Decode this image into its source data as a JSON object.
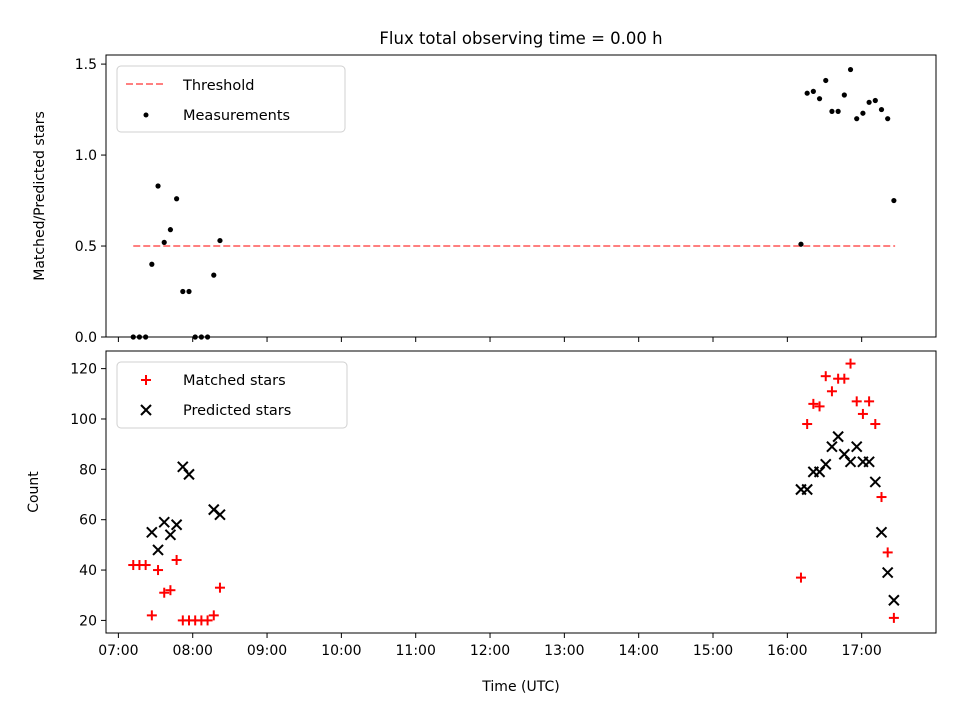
{
  "title": "Flux total observing time = 0.00 h",
  "colors": {
    "measurement": "#000000",
    "threshold": "#ff8080",
    "matched": "#ff0000",
    "predicted": "#000000"
  },
  "chart_data": [
    {
      "type": "scatter",
      "ylabel": "Matched/Predicted stars",
      "ylim": [
        0,
        1.55
      ],
      "yticks": [
        0,
        0.5,
        1.0,
        1.5
      ],
      "ytick_labels": [
        "0.0",
        "0.5",
        "1.0",
        "1.5"
      ],
      "xlim": [
        "06:50",
        "18:00"
      ],
      "legend": {
        "placement": "top-left",
        "entries": [
          "Threshold",
          "Measurements"
        ]
      },
      "threshold": {
        "name": "Threshold",
        "value": 0.5,
        "x": [
          "07:12",
          "17:27"
        ]
      },
      "series": [
        {
          "name": "Measurements",
          "marker": "dot",
          "points": [
            [
              "07:12",
              0.0
            ],
            [
              "07:17",
              0.0
            ],
            [
              "07:22",
              0.0
            ],
            [
              "07:27",
              0.4
            ],
            [
              "07:32",
              0.83
            ],
            [
              "07:37",
              0.52
            ],
            [
              "07:42",
              0.59
            ],
            [
              "07:47",
              0.76
            ],
            [
              "07:52",
              0.25
            ],
            [
              "07:57",
              0.25
            ],
            [
              "08:02",
              0.0
            ],
            [
              "08:07",
              0.0
            ],
            [
              "08:12",
              0.0
            ],
            [
              "08:17",
              0.34
            ],
            [
              "08:22",
              0.53
            ],
            [
              "16:11",
              0.51
            ],
            [
              "16:16",
              1.34
            ],
            [
              "16:21",
              1.35
            ],
            [
              "16:26",
              1.31
            ],
            [
              "16:31",
              1.41
            ],
            [
              "16:36",
              1.24
            ],
            [
              "16:41",
              1.24
            ],
            [
              "16:46",
              1.33
            ],
            [
              "16:51",
              1.47
            ],
            [
              "16:56",
              1.2
            ],
            [
              "17:01",
              1.23
            ],
            [
              "17:06",
              1.29
            ],
            [
              "17:11",
              1.3
            ],
            [
              "17:16",
              1.25
            ],
            [
              "17:21",
              1.2
            ],
            [
              "17:26",
              0.75
            ]
          ]
        }
      ]
    },
    {
      "type": "scatter",
      "xlabel": "Time (UTC)",
      "ylabel": "Count",
      "ylim": [
        15,
        127
      ],
      "yticks": [
        20,
        40,
        60,
        80,
        100,
        120
      ],
      "ytick_labels": [
        "20",
        "40",
        "60",
        "80",
        "100",
        "120"
      ],
      "xlim": [
        "06:50",
        "18:00"
      ],
      "xticks": [
        "07:00",
        "08:00",
        "09:00",
        "10:00",
        "11:00",
        "12:00",
        "13:00",
        "14:00",
        "15:00",
        "16:00",
        "17:00"
      ],
      "xtick_labels": [
        "07:00",
        "08:00",
        "09:00",
        "10:00",
        "11:00",
        "12:00",
        "13:00",
        "14:00",
        "15:00",
        "16:00",
        "17:00"
      ],
      "legend": {
        "placement": "top-left",
        "entries": [
          "Matched stars",
          "Predicted stars"
        ]
      },
      "series": [
        {
          "name": "Matched stars",
          "marker": "plus",
          "points": [
            [
              "07:12",
              42
            ],
            [
              "07:17",
              42
            ],
            [
              "07:22",
              42
            ],
            [
              "07:27",
              22
            ],
            [
              "07:32",
              40
            ],
            [
              "07:37",
              31
            ],
            [
              "07:42",
              32
            ],
            [
              "07:47",
              44
            ],
            [
              "07:52",
              20
            ],
            [
              "07:57",
              20
            ],
            [
              "08:02",
              20
            ],
            [
              "08:07",
              20
            ],
            [
              "08:12",
              20
            ],
            [
              "08:17",
              22
            ],
            [
              "08:22",
              33
            ],
            [
              "16:11",
              37
            ],
            [
              "16:16",
              98
            ],
            [
              "16:21",
              106
            ],
            [
              "16:26",
              105
            ],
            [
              "16:31",
              117
            ],
            [
              "16:36",
              111
            ],
            [
              "16:41",
              116
            ],
            [
              "16:46",
              116
            ],
            [
              "16:51",
              122
            ],
            [
              "16:56",
              107
            ],
            [
              "17:01",
              102
            ],
            [
              "17:06",
              107
            ],
            [
              "17:11",
              98
            ],
            [
              "17:16",
              69
            ],
            [
              "17:21",
              47
            ],
            [
              "17:26",
              21
            ]
          ]
        },
        {
          "name": "Predicted stars",
          "marker": "x",
          "points": [
            [
              "07:27",
              55
            ],
            [
              "07:32",
              48
            ],
            [
              "07:37",
              59
            ],
            [
              "07:42",
              54
            ],
            [
              "07:47",
              58
            ],
            [
              "07:52",
              81
            ],
            [
              "07:57",
              78
            ],
            [
              "08:17",
              64
            ],
            [
              "08:22",
              62
            ],
            [
              "16:11",
              72
            ],
            [
              "16:16",
              72
            ],
            [
              "16:21",
              79
            ],
            [
              "16:26",
              79
            ],
            [
              "16:31",
              82
            ],
            [
              "16:36",
              89
            ],
            [
              "16:41",
              93
            ],
            [
              "16:46",
              86
            ],
            [
              "16:51",
              83
            ],
            [
              "16:56",
              89
            ],
            [
              "17:01",
              83
            ],
            [
              "17:06",
              83
            ],
            [
              "17:11",
              75
            ],
            [
              "17:16",
              55
            ],
            [
              "17:21",
              39
            ],
            [
              "17:26",
              28
            ]
          ]
        }
      ]
    }
  ]
}
